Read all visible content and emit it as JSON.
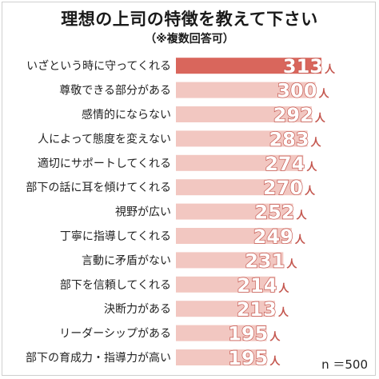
{
  "chart_data": {
    "type": "bar",
    "orientation": "horizontal",
    "title": "理想の上司の特徴を教えて下さい",
    "subtitle": "（※複数回答可）",
    "unit": "人",
    "note": "n ＝500",
    "categories": [
      "いざという時に守ってくれる",
      "尊敬できる部分がある",
      "感情的にならない",
      "人によって態度を変えない",
      "適切にサポートしてくれる",
      "部下の話に耳を傾けてくれる",
      "視野が広い",
      "丁寧に指導してくれる",
      "言動に矛盾がない",
      "部下を信頼してくれる",
      "決断力がある",
      "リーダーシップがある",
      "部下の育成力・指導力が高い"
    ],
    "values": [
      313,
      300,
      292,
      283,
      274,
      270,
      252,
      249,
      231,
      214,
      213,
      195,
      195
    ],
    "grid": false,
    "legend": "none"
  },
  "colors": {
    "bar": "#f2c7c1",
    "bar_top": "#d9665c",
    "value_text": "#c4574f"
  }
}
